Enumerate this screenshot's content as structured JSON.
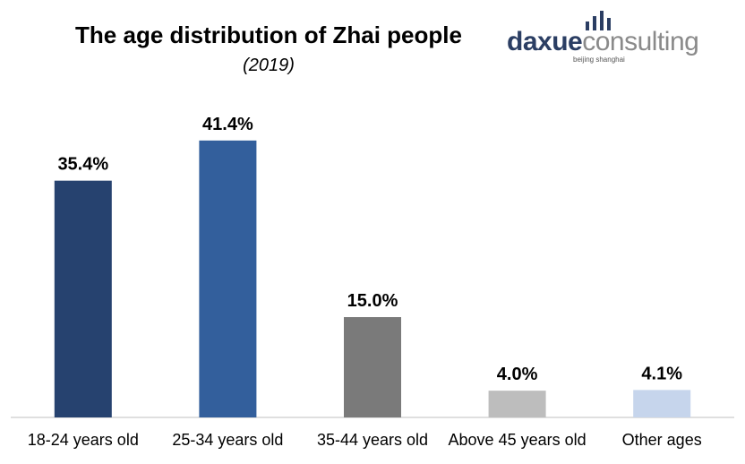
{
  "chart_data": {
    "type": "bar",
    "title": "The age distribution of Zhai people",
    "subtitle": "(2019)",
    "categories": [
      "18-24 years old",
      "25-34 years old",
      "35-44 years old",
      "Above 45 years old",
      "Other ages"
    ],
    "values": [
      35.4,
      41.4,
      15.0,
      4.0,
      4.1
    ],
    "value_labels": [
      "35.4%",
      "41.4%",
      "15.0%",
      "4.0%",
      "4.1%"
    ],
    "colors": [
      "#26426f",
      "#335f9c",
      "#7a7a7a",
      "#bdbdbd",
      "#c6d5ec"
    ],
    "ylim": [
      0,
      45
    ],
    "xlabel": "",
    "ylabel": "",
    "grid": false,
    "legend": "none"
  },
  "logo": {
    "brand_part1": "daxue",
    "brand_part2": "consulting",
    "tagline": "beijing shanghai"
  }
}
